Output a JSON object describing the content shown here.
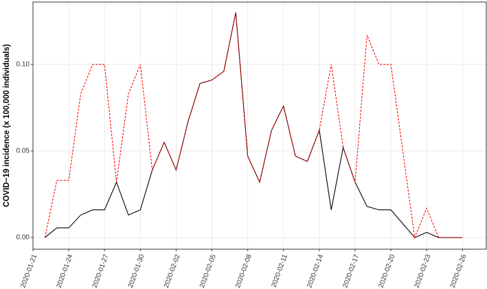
{
  "chart_data": {
    "type": "line",
    "ylabel": "COVID−19 incidence (x 100,000 individuals)",
    "x": [
      "2020-01-22",
      "2020-01-23",
      "2020-01-24",
      "2020-01-25",
      "2020-01-26",
      "2020-01-27",
      "2020-01-28",
      "2020-01-29",
      "2020-01-30",
      "2020-01-31",
      "2020-02-01",
      "2020-02-02",
      "2020-02-03",
      "2020-02-04",
      "2020-02-05",
      "2020-02-06",
      "2020-02-07",
      "2020-02-08",
      "2020-02-09",
      "2020-02-10",
      "2020-02-11",
      "2020-02-12",
      "2020-02-13",
      "2020-02-14",
      "2020-02-15",
      "2020-02-16",
      "2020-02-17",
      "2020-02-18",
      "2020-02-19",
      "2020-02-20",
      "2020-02-21",
      "2020-02-22",
      "2020-02-23",
      "2020-02-24",
      "2020-02-25",
      "2020-02-26"
    ],
    "series": [
      {
        "color": "#000000",
        "dash": false,
        "values": [
          0,
          0.0056,
          0.0056,
          0.013,
          0.016,
          0.016,
          0.032,
          0.013,
          0.016,
          0.039,
          0.055,
          0.039,
          0.067,
          0.089,
          0.091,
          0.096,
          0.13,
          0.047,
          0.032,
          0.062,
          0.076,
          0.047,
          0.044,
          0.062,
          0.016,
          0.052,
          0.032,
          0.018,
          0.016,
          0.016,
          0.008,
          0,
          0.003,
          0,
          0,
          0
        ]
      },
      {
        "color": "#ff0000",
        "dash": true,
        "values": [
          0,
          0.033,
          0.033,
          0.083,
          0.1,
          0.1,
          0.032,
          0.083,
          0.1,
          0.039,
          0.055,
          0.039,
          0.067,
          0.089,
          0.091,
          0.096,
          0.13,
          0.047,
          0.032,
          0.062,
          0.076,
          0.047,
          0.044,
          0.062,
          0.1,
          0.052,
          0.032,
          0.117,
          0.1,
          0.1,
          0.05,
          0,
          0.017,
          0,
          0,
          0
        ]
      }
    ],
    "xlim": [
      "2020-01-21",
      "2020-02-28"
    ],
    "xticks": [
      "2020-01-21",
      "2020-01-24",
      "2020-01-27",
      "2020-01-30",
      "2020-02-02",
      "2020-02-05",
      "2020-02-08",
      "2020-02-11",
      "2020-02-14",
      "2020-02-17",
      "2020-02-20",
      "2020-02-23",
      "2020-02-26"
    ],
    "ylim": [
      -0.0067,
      0.136
    ],
    "yticks": [
      {
        "value": 0,
        "label": "0.00"
      },
      {
        "value": 0.05,
        "label": "0.05"
      },
      {
        "value": 0.1,
        "label": "0.10"
      }
    ],
    "grid": true
  }
}
